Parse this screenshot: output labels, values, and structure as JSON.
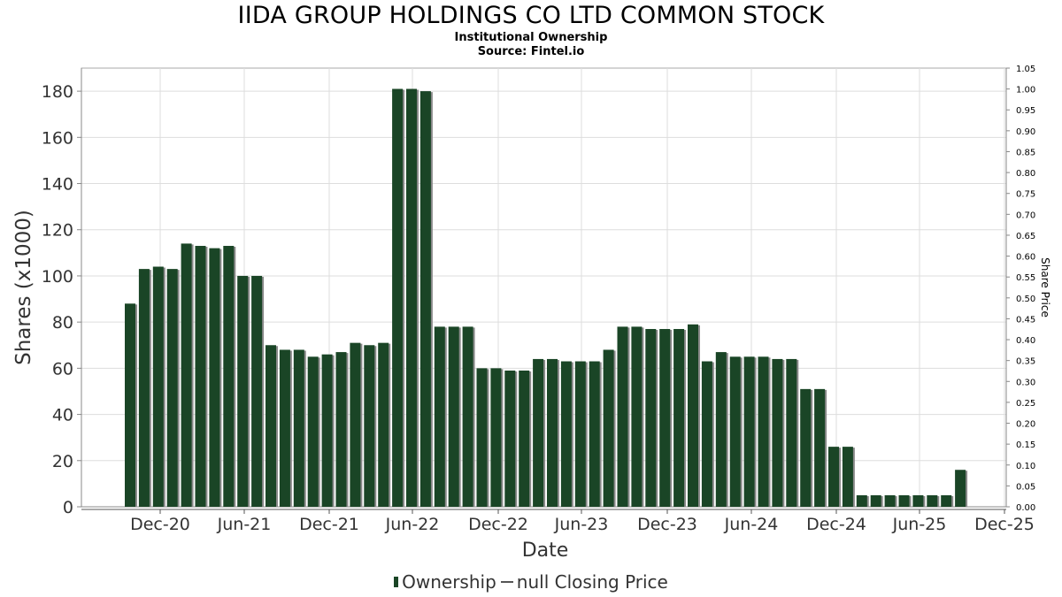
{
  "title": "IIDA GROUP HOLDINGS CO LTD COMMON STOCK",
  "subtitle": "Institutional Ownership",
  "source": "Source: Fintel.io",
  "legend": {
    "ownership_label": "Ownership",
    "price_label": "null Closing Price"
  },
  "colors": {
    "bar": "#1a4526",
    "bar_shadow": "#8a8a8a",
    "grid": "#dddddd",
    "axis": "#888888"
  },
  "chart_data": {
    "type": "bar",
    "xlabel": "Date",
    "ylabel": "Shares (x1000)",
    "y2label": "Share Price",
    "ylim": [
      0,
      190
    ],
    "y2lim": [
      0,
      1.05
    ],
    "yticks": [
      "0",
      "20",
      "40",
      "60",
      "80",
      "100",
      "120",
      "140",
      "160",
      "180"
    ],
    "y2ticks": [
      "0.00",
      "0.05",
      "0.10",
      "0.15",
      "0.20",
      "0.25",
      "0.30",
      "0.35",
      "0.40",
      "0.45",
      "0.50",
      "0.55",
      "0.60",
      "0.65",
      "0.70",
      "0.75",
      "0.80",
      "0.85",
      "0.90",
      "0.95",
      "1.00",
      "1.05"
    ],
    "xticks": [
      "Dec-20",
      "Jun-21",
      "Dec-21",
      "Jun-22",
      "Dec-22",
      "Jun-23",
      "Dec-23",
      "Jun-24",
      "Dec-24",
      "Jun-25",
      "Dec-25"
    ],
    "grid": true,
    "legend_position": "bottom",
    "series": [
      {
        "name": "Ownership",
        "values": [
          88,
          103,
          104,
          103,
          114,
          113,
          112,
          113,
          100,
          100,
          70,
          68,
          68,
          65,
          66,
          67,
          71,
          70,
          71,
          181,
          181,
          180,
          78,
          78,
          78,
          60,
          60,
          59,
          59,
          64,
          64,
          63,
          63,
          63,
          68,
          78,
          78,
          77,
          77,
          77,
          79,
          63,
          67,
          65,
          65,
          65,
          64,
          64,
          51,
          51,
          26,
          26,
          5,
          5,
          5,
          5,
          5,
          5,
          5,
          16
        ]
      }
    ]
  }
}
